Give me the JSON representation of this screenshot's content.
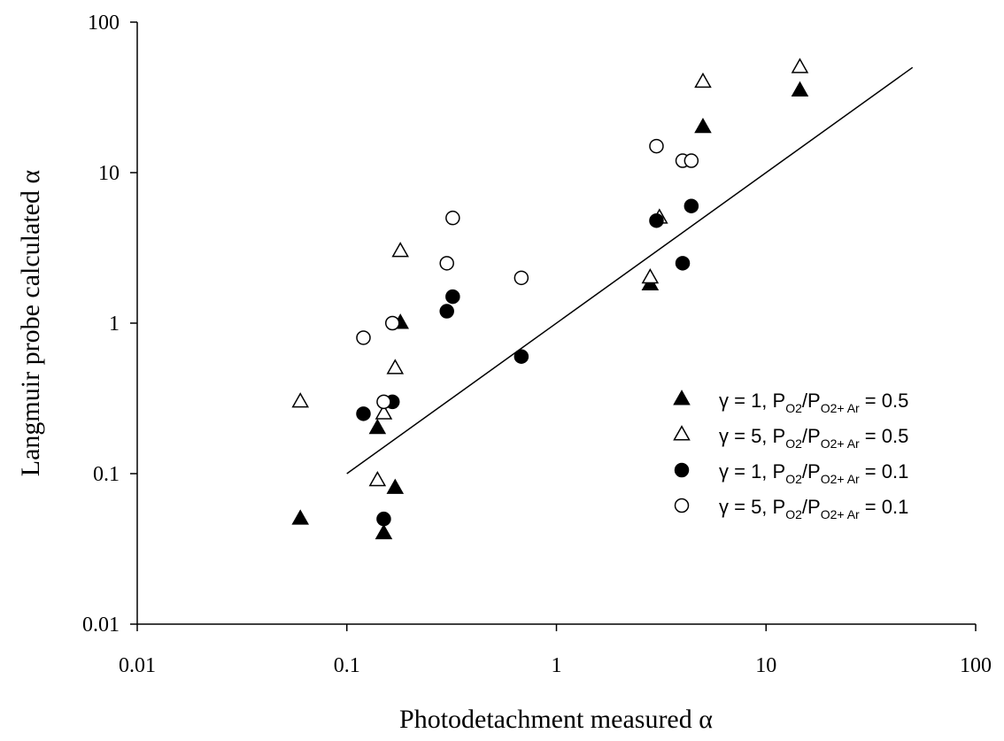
{
  "chart_data": {
    "type": "scatter",
    "xscale": "log",
    "yscale": "log",
    "xlim": [
      0.01,
      100
    ],
    "ylim": [
      0.01,
      100
    ],
    "xticks": [
      "0.01",
      "0.1",
      "1",
      "10",
      "100"
    ],
    "yticks": [
      "0.01",
      "0.1",
      "1",
      "10",
      "100"
    ],
    "xlabel": "Photodetachment measured α",
    "ylabel": "Langmuir probe calculated α",
    "grid": false,
    "legend_position": "lower-right",
    "series": [
      {
        "gamma": "γ = 1, ",
        "pressure_prefix": "P",
        "sub_o2": "O2",
        "slash": "/P",
        "sub_o2ar": "O2+ Ar",
        "ratio": " = 0.5",
        "marker": "triangle-filled",
        "x": [
          0.06,
          0.14,
          0.15,
          0.17,
          0.18,
          2.8,
          5.0,
          14.5
        ],
        "y": [
          0.05,
          0.2,
          0.04,
          0.08,
          1.0,
          1.8,
          20,
          35
        ]
      },
      {
        "gamma": "γ = 5, ",
        "pressure_prefix": "P",
        "sub_o2": "O2",
        "slash": "/P",
        "sub_o2ar": "O2+ Ar",
        "ratio": " = 0.5",
        "marker": "triangle-open",
        "x": [
          0.06,
          0.14,
          0.15,
          0.17,
          0.18,
          2.8,
          3.1,
          5.0,
          14.5
        ],
        "y": [
          0.3,
          0.09,
          0.25,
          0.5,
          3.0,
          2.0,
          5.0,
          40,
          50
        ]
      },
      {
        "gamma": "γ = 1, ",
        "pressure_prefix": "P",
        "sub_o2": "O2",
        "slash": "/P",
        "sub_o2ar": "O2+ Ar",
        "ratio": " = 0.1",
        "marker": "circle-filled",
        "x": [
          0.12,
          0.15,
          0.165,
          0.3,
          0.32,
          0.68,
          3.0,
          4.0,
          4.4
        ],
        "y": [
          0.25,
          0.05,
          0.3,
          1.2,
          1.5,
          0.6,
          4.8,
          2.5,
          6.0
        ]
      },
      {
        "gamma": "γ = 5, ",
        "pressure_prefix": "P",
        "sub_o2": "O2",
        "slash": "/P",
        "sub_o2ar": "O2+ Ar",
        "ratio": " = 0.1",
        "marker": "circle-open",
        "x": [
          0.12,
          0.15,
          0.165,
          0.3,
          0.32,
          0.68,
          3.0,
          4.0,
          4.4
        ],
        "y": [
          0.8,
          0.3,
          1.0,
          2.5,
          5.0,
          2.0,
          15,
          12,
          12
        ]
      }
    ],
    "line": {
      "x": [
        0.1,
        50
      ],
      "y": [
        0.1,
        50
      ]
    }
  }
}
